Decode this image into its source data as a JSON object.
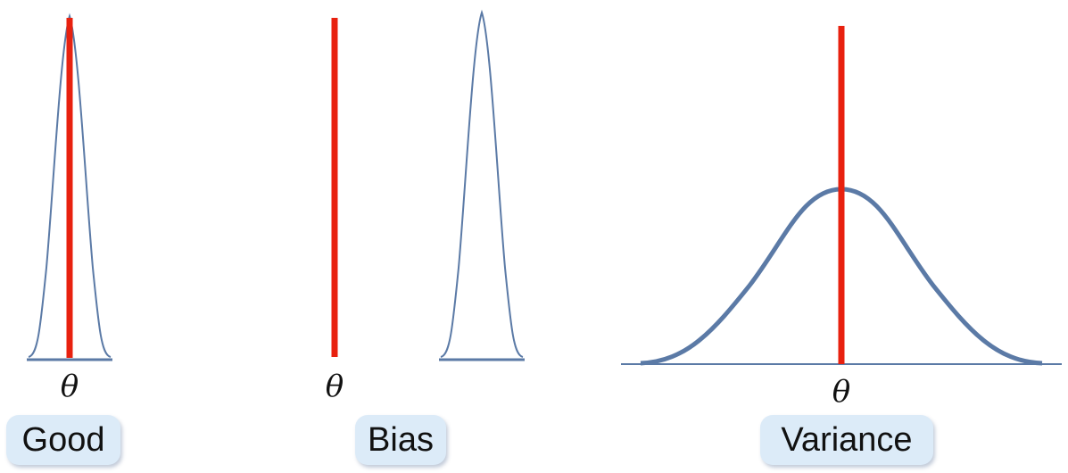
{
  "panels": [
    {
      "label": "Good",
      "theta": "θ"
    },
    {
      "label": "Bias",
      "theta": "θ"
    },
    {
      "label": "Variance",
      "theta": "θ"
    }
  ],
  "colors": {
    "true_value_line": "#e8210f",
    "distribution_curve": "#5b7aa6",
    "label_background": "#dcebf8"
  }
}
